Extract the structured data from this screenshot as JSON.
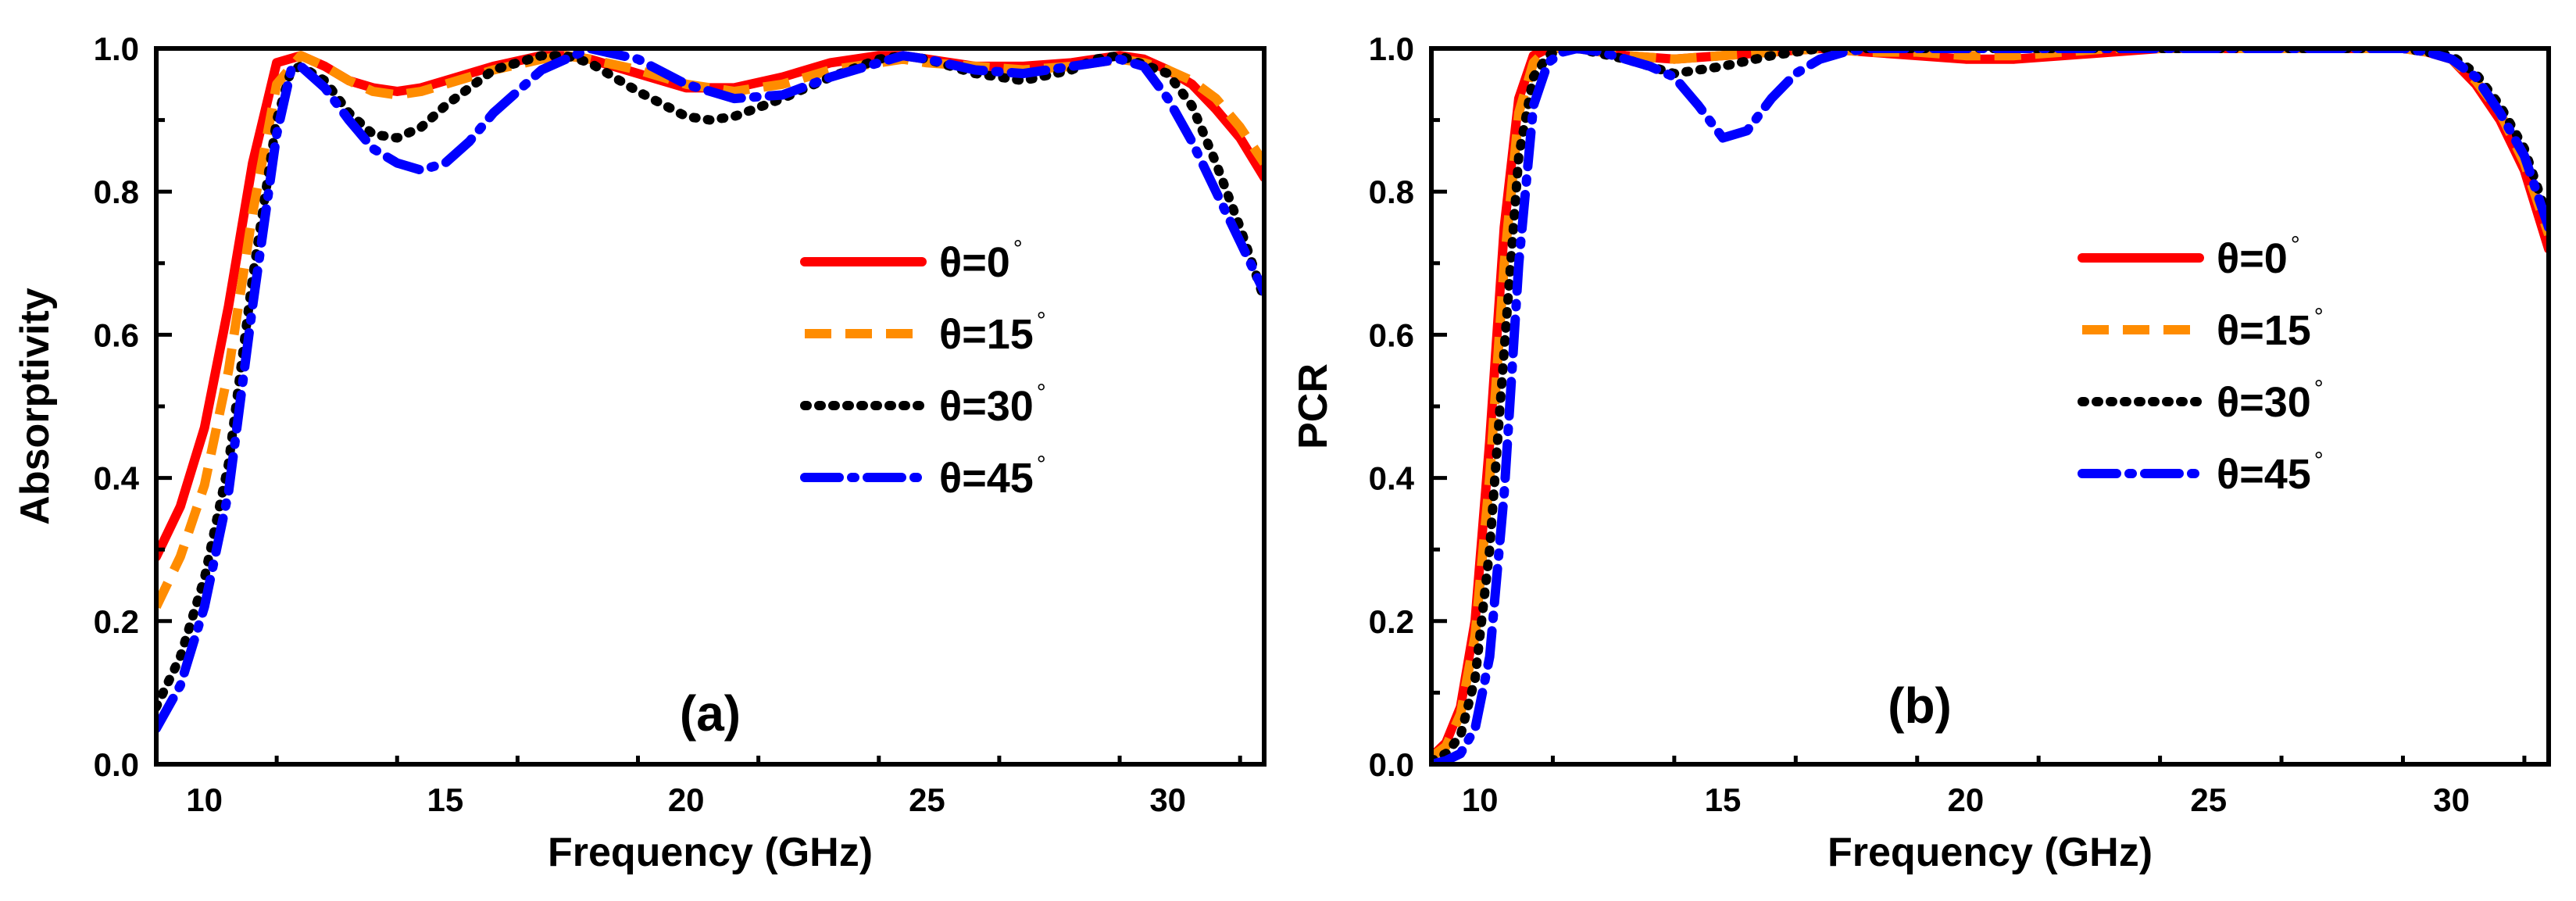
{
  "chart_data": [
    {
      "type": "line",
      "panel_label": "(a)",
      "xlabel": "Frequency (GHz)",
      "ylabel": "Absorptivity",
      "xlim": [
        9,
        32
      ],
      "ylim": [
        0,
        1.0
      ],
      "xticks": [
        10,
        15,
        20,
        25,
        30
      ],
      "xtick_labels": [
        "10",
        "15",
        "20",
        "25",
        "30"
      ],
      "yticks": [
        0,
        0.2,
        0.4,
        0.6,
        0.8,
        1.0
      ],
      "ytick_labels": [
        "0.0",
        "0.2",
        "0.4",
        "0.6",
        "0.8",
        "1.0"
      ],
      "legend_position": "center-right",
      "series": [
        {
          "name": "θ=0°",
          "name_main": "θ=0",
          "name_sup": "°",
          "color": "#ff0000",
          "style": "solid",
          "x": [
            9,
            9.5,
            10,
            10.5,
            11,
            11.5,
            12,
            12.5,
            13,
            13.5,
            14,
            14.5,
            15,
            16,
            17,
            17.5,
            18,
            19,
            20,
            21,
            22,
            23,
            24,
            24.5,
            25,
            26,
            27,
            28,
            29,
            29.5,
            30,
            30.5,
            31,
            31.5,
            32
          ],
          "y": [
            0.29,
            0.36,
            0.47,
            0.64,
            0.84,
            0.98,
            0.99,
            0.975,
            0.955,
            0.945,
            0.94,
            0.945,
            0.955,
            0.975,
            0.99,
            0.99,
            0.985,
            0.965,
            0.945,
            0.945,
            0.96,
            0.98,
            0.99,
            0.99,
            0.985,
            0.975,
            0.975,
            0.98,
            0.99,
            0.985,
            0.97,
            0.95,
            0.915,
            0.875,
            0.82
          ]
        },
        {
          "name": "θ=15°",
          "name_main": "θ=15",
          "name_sup": "°",
          "color": "#ff8c00",
          "style": "dash",
          "x": [
            9,
            9.5,
            10,
            10.5,
            11,
            11.5,
            12,
            12.5,
            13,
            13.5,
            14,
            14.5,
            15,
            16,
            17,
            17.5,
            18,
            19,
            20,
            21,
            22,
            23,
            24,
            24.5,
            25,
            26,
            27,
            28,
            29,
            29.5,
            30,
            30.5,
            31,
            31.5,
            32
          ],
          "y": [
            0.22,
            0.29,
            0.39,
            0.55,
            0.77,
            0.95,
            0.99,
            0.975,
            0.955,
            0.94,
            0.935,
            0.94,
            0.95,
            0.97,
            0.985,
            0.99,
            0.985,
            0.97,
            0.95,
            0.94,
            0.95,
            0.97,
            0.98,
            0.985,
            0.98,
            0.975,
            0.97,
            0.975,
            0.985,
            0.98,
            0.97,
            0.955,
            0.93,
            0.89,
            0.84
          ]
        },
        {
          "name": "θ=30°",
          "name_main": "θ=30",
          "name_sup": "°",
          "color": "#000000",
          "style": "dot",
          "x": [
            9,
            9.5,
            10,
            10.5,
            11,
            11.5,
            11.8,
            12,
            12.5,
            13,
            13.5,
            14,
            14.5,
            15,
            16,
            17,
            17.5,
            18,
            19,
            20,
            20.5,
            21,
            22,
            23,
            24,
            24.5,
            25,
            26,
            27,
            28,
            28.5,
            29,
            30,
            30.5,
            31,
            31.5,
            32
          ],
          "y": [
            0.08,
            0.15,
            0.26,
            0.42,
            0.68,
            0.9,
            0.97,
            0.975,
            0.955,
            0.91,
            0.88,
            0.875,
            0.89,
            0.92,
            0.97,
            0.99,
            0.99,
            0.98,
            0.94,
            0.905,
            0.9,
            0.905,
            0.93,
            0.96,
            0.985,
            0.99,
            0.985,
            0.965,
            0.955,
            0.97,
            0.985,
            0.99,
            0.965,
            0.92,
            0.84,
            0.75,
            0.65
          ]
        },
        {
          "name": "θ=45°",
          "name_main": "θ=45",
          "name_sup": "°",
          "color": "#0000ff",
          "style": "dashdot",
          "x": [
            9,
            9.5,
            10,
            10.5,
            11,
            11.5,
            11.8,
            12,
            12.5,
            13,
            13.5,
            14,
            14.5,
            15,
            15.5,
            16,
            17,
            18,
            19,
            20,
            21,
            22,
            23,
            24,
            24.5,
            25,
            26,
            27,
            28,
            29,
            29.5,
            30,
            30.5,
            31,
            31.5,
            32
          ],
          "y": [
            0.05,
            0.11,
            0.22,
            0.38,
            0.64,
            0.88,
            0.97,
            0.975,
            0.945,
            0.9,
            0.86,
            0.84,
            0.83,
            0.84,
            0.87,
            0.91,
            0.97,
            1.0,
            0.985,
            0.95,
            0.93,
            0.935,
            0.96,
            0.98,
            0.99,
            0.985,
            0.97,
            0.965,
            0.975,
            0.985,
            0.975,
            0.93,
            0.87,
            0.8,
            0.73,
            0.66
          ]
        }
      ]
    },
    {
      "type": "line",
      "panel_label": "(b)",
      "xlabel": "Frequency (GHz)",
      "ylabel": "PCR",
      "xlim": [
        9,
        32
      ],
      "ylim": [
        0,
        1.0
      ],
      "xticks": [
        10,
        15,
        20,
        25,
        30
      ],
      "xtick_labels": [
        "10",
        "15",
        "20",
        "25",
        "30"
      ],
      "yticks": [
        0,
        0.2,
        0.4,
        0.6,
        0.8,
        1.0
      ],
      "ytick_labels": [
        "0.0",
        "0.2",
        "0.4",
        "0.6",
        "0.8",
        "1.0"
      ],
      "legend_position": "center-right",
      "series": [
        {
          "name": "θ=0°",
          "name_main": "θ=0",
          "name_sup": "°",
          "color": "#ff0000",
          "style": "solid",
          "x": [
            9,
            9.3,
            9.6,
            9.9,
            10.2,
            10.5,
            10.8,
            11.1,
            11.4,
            12,
            13,
            14,
            15,
            16,
            17,
            18,
            19,
            20,
            21,
            22,
            23,
            24,
            25,
            26,
            27,
            28,
            29,
            29.5,
            30,
            30.5,
            31,
            31.5,
            32
          ],
          "y": [
            0.01,
            0.03,
            0.08,
            0.2,
            0.45,
            0.75,
            0.93,
            0.99,
            1.0,
            1.0,
            0.99,
            0.985,
            0.99,
            0.995,
            1.0,
            0.995,
            0.99,
            0.985,
            0.985,
            0.99,
            0.995,
            1.0,
            1.0,
            1.0,
            1.0,
            1.0,
            1.0,
            0.995,
            0.985,
            0.95,
            0.9,
            0.83,
            0.72
          ]
        },
        {
          "name": "θ=15°",
          "name_main": "θ=15",
          "name_sup": "°",
          "color": "#ff8c00",
          "style": "dash",
          "x": [
            9,
            9.3,
            9.6,
            9.9,
            10.2,
            10.5,
            10.8,
            11.1,
            11.4,
            12,
            13,
            14,
            15,
            16,
            17,
            18,
            19,
            20,
            21,
            22,
            23,
            24,
            25,
            26,
            27,
            28,
            29,
            29.5,
            30,
            30.5,
            31,
            31.5,
            32
          ],
          "y": [
            0.01,
            0.025,
            0.07,
            0.18,
            0.4,
            0.7,
            0.91,
            0.98,
            1.0,
            1.0,
            0.99,
            0.985,
            0.99,
            0.995,
            1.0,
            0.995,
            0.995,
            0.99,
            0.99,
            0.995,
            1.0,
            1.0,
            1.0,
            1.0,
            1.0,
            1.0,
            1.0,
            0.995,
            0.985,
            0.955,
            0.91,
            0.84,
            0.74
          ]
        },
        {
          "name": "θ=30°",
          "name_main": "θ=30",
          "name_sup": "°",
          "color": "#000000",
          "style": "dot",
          "x": [
            9,
            9.3,
            9.6,
            9.9,
            10.2,
            10.5,
            10.8,
            11.1,
            11.4,
            11.7,
            12,
            13,
            14,
            15,
            16,
            17,
            18,
            19,
            20,
            21,
            22,
            23,
            24,
            25,
            26,
            27,
            28,
            29,
            29.5,
            30,
            30.5,
            31,
            31.5,
            32
          ],
          "y": [
            0.005,
            0.015,
            0.04,
            0.12,
            0.3,
            0.58,
            0.85,
            0.96,
            0.99,
            1.0,
            1.0,
            0.985,
            0.965,
            0.975,
            0.99,
            1.0,
            1.0,
            1.0,
            1.0,
            1.0,
            1.0,
            1.0,
            1.0,
            1.0,
            1.0,
            1.0,
            1.0,
            1.0,
            0.995,
            0.99,
            0.965,
            0.92,
            0.86,
            0.76
          ]
        },
        {
          "name": "θ=45°",
          "name_main": "θ=45",
          "name_sup": "°",
          "color": "#0000ff",
          "style": "dashdot",
          "x": [
            9,
            9.3,
            9.6,
            9.9,
            10.2,
            10.5,
            10.8,
            11.1,
            11.4,
            11.7,
            12,
            12.5,
            13,
            13.5,
            14,
            14.5,
            15,
            15.5,
            16,
            16.5,
            17,
            17.5,
            18,
            19,
            20,
            21,
            22,
            23,
            24,
            25,
            26,
            27,
            28,
            29,
            29.5,
            30,
            30.5,
            31,
            31.5,
            32
          ],
          "y": [
            0.0,
            0.005,
            0.015,
            0.05,
            0.15,
            0.38,
            0.7,
            0.92,
            0.98,
            0.995,
            1.0,
            0.995,
            0.985,
            0.975,
            0.96,
            0.92,
            0.875,
            0.885,
            0.93,
            0.965,
            0.985,
            0.995,
            1.0,
            1.0,
            1.0,
            1.0,
            1.0,
            1.0,
            1.0,
            1.0,
            1.0,
            1.0,
            1.0,
            1.0,
            0.995,
            0.985,
            0.96,
            0.91,
            0.85,
            0.75
          ]
        }
      ]
    }
  ]
}
